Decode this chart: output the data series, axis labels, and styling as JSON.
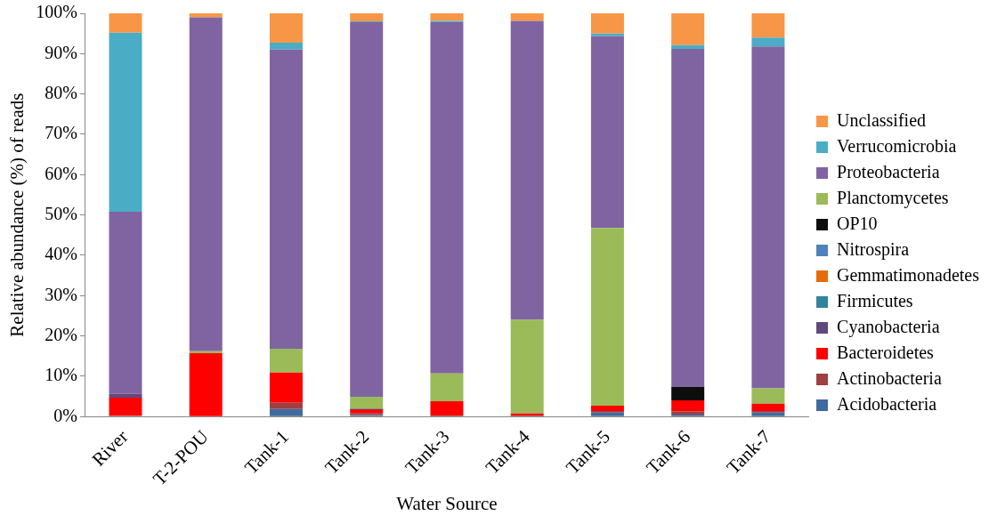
{
  "chart_data": {
    "type": "bar",
    "stacked": true,
    "xlabel": "Water Source",
    "ylabel": "Relative abundance (%) of reads",
    "categories": [
      "River",
      "T-2-POU",
      "Tank-1",
      "Tank-2",
      "Tank-3",
      "Tank-4",
      "Tank-5",
      "Tank-6",
      "Tank-7"
    ],
    "ylim": [
      0,
      100
    ],
    "yticks": [
      {
        "value": 0,
        "label": "0%"
      },
      {
        "value": 10,
        "label": "10%"
      },
      {
        "value": 20,
        "label": "20%"
      },
      {
        "value": 30,
        "label": "30%"
      },
      {
        "value": 40,
        "label": "40%"
      },
      {
        "value": 50,
        "label": "50%"
      },
      {
        "value": 60,
        "label": "60%"
      },
      {
        "value": 70,
        "label": "70%"
      },
      {
        "value": 80,
        "label": "80%"
      },
      {
        "value": 90,
        "label": "90%"
      },
      {
        "value": 100,
        "label": "100%"
      }
    ],
    "grid": false,
    "legend": "right",
    "series": [
      {
        "name": "Acidobacteria",
        "color": "#3f6a9e",
        "values": [
          0,
          0,
          1.9,
          0.4,
          0,
          0,
          1.0,
          0.5,
          1.0
        ]
      },
      {
        "name": "Actinobacteria",
        "color": "#a04040",
        "values": [
          0.2,
          0,
          1.5,
          0.4,
          0.3,
          0.3,
          0.4,
          0.8,
          0.4
        ]
      },
      {
        "name": "Bacteroidetes",
        "color": "#ff0000",
        "values": [
          4.5,
          15.7,
          7.5,
          1.0,
          3.5,
          0.5,
          1.3,
          2.7,
          1.8
        ]
      },
      {
        "name": "Cyanobacteria",
        "color": "#604a7b",
        "values": [
          0.9,
          0,
          0,
          0,
          0,
          0,
          0,
          0,
          0
        ]
      },
      {
        "name": "Firmicutes",
        "color": "#31849b",
        "values": [
          0,
          0,
          0,
          0.2,
          0,
          0,
          0,
          0,
          0
        ]
      },
      {
        "name": "Gemmatimonadetes",
        "color": "#e46c0a",
        "values": [
          0,
          0,
          0,
          0,
          0,
          0,
          0,
          0,
          0
        ]
      },
      {
        "name": "Nitrospira",
        "color": "#4f81bd",
        "values": [
          0,
          0,
          0,
          0,
          0,
          0,
          0,
          0,
          0
        ]
      },
      {
        "name": "OP10",
        "color": "#0d0d0d",
        "values": [
          0,
          0,
          0,
          0,
          0,
          0,
          0,
          3.4,
          0
        ]
      },
      {
        "name": "Planctomycetes",
        "color": "#9bbb59",
        "values": [
          0,
          0.5,
          5.9,
          2.9,
          6.9,
          23.2,
          44.1,
          0,
          3.8
        ]
      },
      {
        "name": "Proteobacteria",
        "color": "#8064a2",
        "values": [
          45.2,
          82.8,
          74.2,
          92.9,
          87.1,
          74.1,
          47.5,
          83.8,
          84.8
        ]
      },
      {
        "name": "Verrucomicrobia",
        "color": "#4bacc6",
        "values": [
          44.4,
          0,
          1.7,
          0.2,
          0.3,
          0,
          0.7,
          0.9,
          2.2
        ]
      },
      {
        "name": "Unclassified",
        "color": "#f79646",
        "values": [
          4.8,
          1.0,
          7.3,
          2.0,
          1.9,
          1.9,
          5.0,
          7.9,
          6.0
        ]
      }
    ]
  }
}
